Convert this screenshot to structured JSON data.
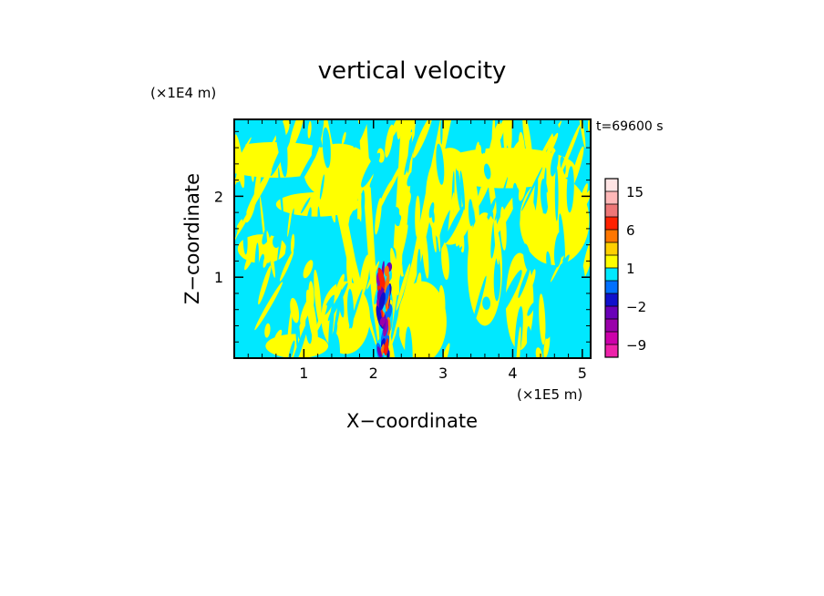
{
  "chart_data": {
    "type": "heatmap",
    "title": "vertical velocity",
    "xlabel": "X−coordinate",
    "ylabel": "Z−coordinate",
    "x_scale_label": "(×1E5 m)",
    "y_scale_label": "(×1E4 m)",
    "time_label": "t=69600 s",
    "xlim": [
      0,
      5.12
    ],
    "ylim": [
      0,
      2.95
    ],
    "x_ticks": [
      1,
      2,
      3,
      4,
      5
    ],
    "x_tick_labels": [
      "1",
      "2",
      "3",
      "4",
      "5"
    ],
    "y_ticks": [
      1,
      2
    ],
    "y_tick_labels": [
      "1",
      "2"
    ],
    "background_field": {
      "dominant_negative_color": "#00e8ff",
      "dominant_positive_color": "#ffff00",
      "description_hint": "alternating yellow/cyan filaments; a V-shaped yellow plume rising from the jet core near x=2.2"
    },
    "core_x": 2.15,
    "core_top_z": 1.15,
    "colorbar": {
      "levels": [
        -12,
        -9,
        -6,
        -4,
        -2,
        -1,
        0,
        1,
        2,
        3,
        6,
        9,
        12,
        15,
        21
      ],
      "colors": [
        "#ee22aa",
        "#cc00aa",
        "#9a00aa",
        "#6a00b8",
        "#1010cc",
        "#0070ff",
        "#00e8ff",
        "#ffff00",
        "#ffd000",
        "#ff7700",
        "#ff2200",
        "#ee7777",
        "#ffb8b8",
        "#ffe4e4"
      ],
      "tick_labels": [
        "15",
        "6",
        "1",
        "−2",
        "−9"
      ],
      "tick_values": [
        15,
        6,
        1,
        -2,
        -9
      ]
    }
  }
}
